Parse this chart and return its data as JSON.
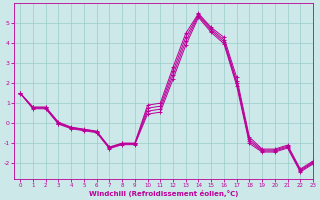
{
  "title": "",
  "xlabel": "Windchill (Refroidissement éolien,°C)",
  "ylabel": "",
  "xlim": [
    -0.5,
    23
  ],
  "ylim": [
    -2.8,
    6.0
  ],
  "yticks": [
    -2,
    -1,
    0,
    1,
    2,
    3,
    4,
    5
  ],
  "xticks": [
    0,
    1,
    2,
    3,
    4,
    5,
    6,
    7,
    8,
    9,
    10,
    11,
    12,
    13,
    14,
    15,
    16,
    17,
    18,
    19,
    20,
    21,
    22,
    23
  ],
  "bg_color": "#cce8e8",
  "line_color": "#bb0099",
  "grid_color": "#99cccc",
  "series": [
    {
      "x": [
        0,
        1,
        2,
        3,
        4,
        5,
        6,
        7,
        8,
        9,
        10,
        11,
        12,
        13,
        14,
        15,
        16,
        17,
        18,
        19,
        20,
        21,
        22,
        23
      ],
      "y": [
        1.5,
        0.8,
        0.8,
        0.05,
        -0.2,
        -0.3,
        -0.4,
        -1.2,
        -1.0,
        -1.0,
        0.9,
        1.0,
        2.8,
        4.5,
        5.5,
        4.8,
        4.3,
        2.3,
        -0.7,
        -1.3,
        -1.3,
        -1.1,
        -2.3,
        -1.9
      ]
    },
    {
      "x": [
        0,
        1,
        2,
        3,
        4,
        5,
        6,
        7,
        8,
        9,
        10,
        11,
        12,
        13,
        14,
        15,
        16,
        17,
        18,
        19,
        20,
        21,
        22,
        23
      ],
      "y": [
        1.5,
        0.8,
        0.8,
        0.02,
        -0.22,
        -0.32,
        -0.42,
        -1.22,
        -1.02,
        -1.02,
        0.75,
        0.85,
        2.6,
        4.3,
        5.45,
        4.72,
        4.18,
        2.1,
        -0.82,
        -1.35,
        -1.35,
        -1.15,
        -2.35,
        -1.95
      ]
    },
    {
      "x": [
        0,
        1,
        2,
        3,
        4,
        5,
        6,
        7,
        8,
        9,
        10,
        11,
        12,
        13,
        14,
        15,
        16,
        17,
        18,
        19,
        20,
        21,
        22,
        23
      ],
      "y": [
        1.5,
        0.75,
        0.75,
        -0.02,
        -0.25,
        -0.35,
        -0.45,
        -1.25,
        -1.05,
        -1.05,
        0.6,
        0.7,
        2.4,
        4.1,
        5.38,
        4.64,
        4.08,
        2.0,
        -0.92,
        -1.4,
        -1.4,
        -1.2,
        -2.4,
        -2.0
      ]
    },
    {
      "x": [
        0,
        1,
        2,
        3,
        4,
        5,
        6,
        7,
        8,
        9,
        10,
        11,
        12,
        13,
        14,
        15,
        16,
        17,
        18,
        19,
        20,
        21,
        22,
        23
      ],
      "y": [
        1.48,
        0.72,
        0.72,
        -0.05,
        -0.28,
        -0.38,
        -0.48,
        -1.28,
        -1.08,
        -1.08,
        0.45,
        0.55,
        2.2,
        3.9,
        5.3,
        4.55,
        3.98,
        1.88,
        -1.02,
        -1.45,
        -1.45,
        -1.25,
        -2.45,
        -2.05
      ]
    }
  ]
}
